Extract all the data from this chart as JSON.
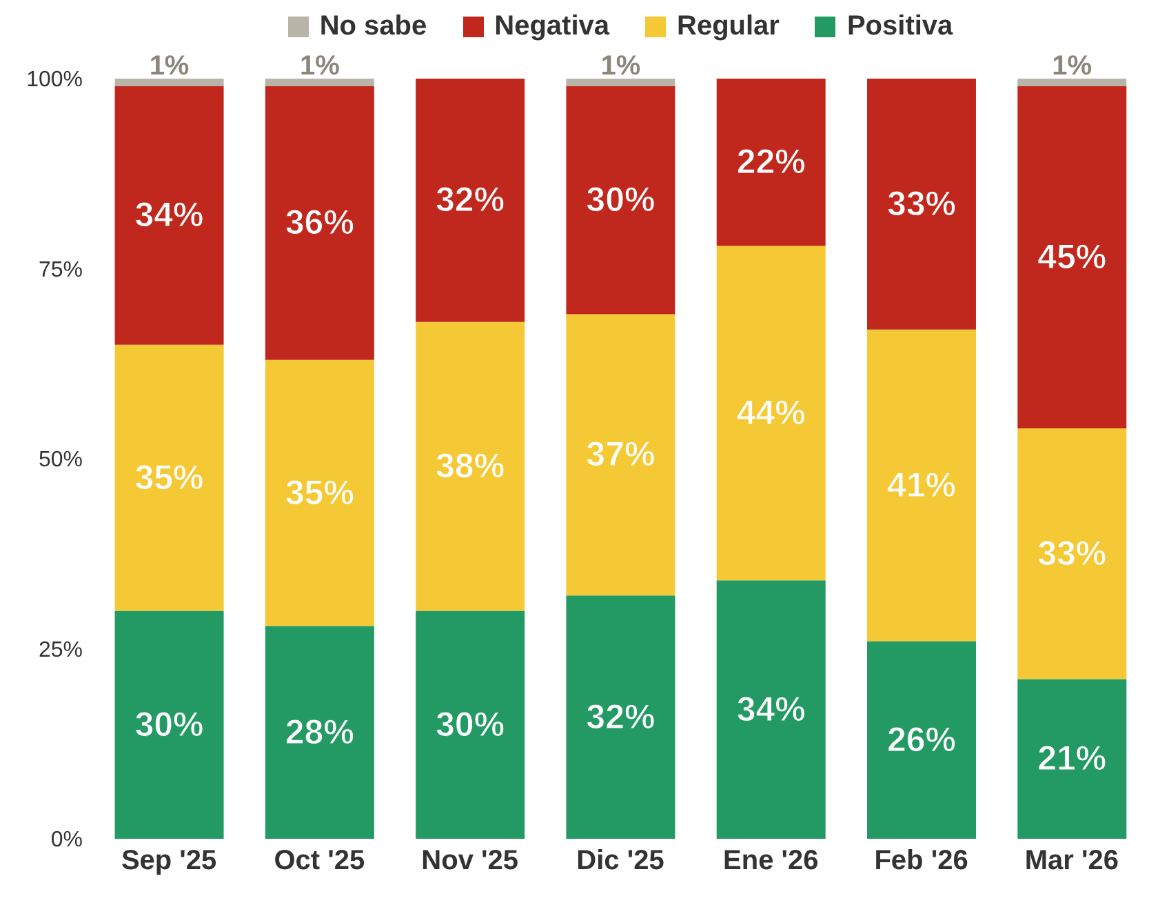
{
  "chart_data": {
    "type": "bar",
    "stacked": true,
    "legend": "top",
    "categories": [
      "Sep '25",
      "Oct '25",
      "Nov '25",
      "Dic '25",
      "Ene '26",
      "Feb '26",
      "Mar '26"
    ],
    "ylim": [
      0,
      100
    ],
    "yticks": [
      {
        "value": 0,
        "label": "0%"
      },
      {
        "value": 25,
        "label": "25%"
      },
      {
        "value": 50,
        "label": "50%"
      },
      {
        "value": 75,
        "label": "75%"
      },
      {
        "value": 100,
        "label": "100%"
      }
    ],
    "series": [
      {
        "name": "Positiva",
        "color": "#239a63",
        "values": [
          30,
          28,
          30,
          32,
          34,
          26,
          21
        ],
        "value_labels": [
          "30%",
          "28%",
          "30%",
          "32%",
          "34%",
          "26%",
          "21%"
        ]
      },
      {
        "name": "Regular",
        "color": "#f5c935",
        "values": [
          35,
          35,
          38,
          37,
          44,
          41,
          33
        ],
        "value_labels": [
          "35%",
          "35%",
          "38%",
          "37%",
          "44%",
          "41%",
          "33%"
        ]
      },
      {
        "name": "Negativa",
        "color": "#c0281e",
        "values": [
          34,
          36,
          32,
          30,
          22,
          33,
          45
        ],
        "value_labels": [
          "34%",
          "36%",
          "32%",
          "30%",
          "22%",
          "33%",
          "45%"
        ]
      },
      {
        "name": "No sabe",
        "color": "#b8b4a8",
        "values": [
          1,
          1,
          null,
          1,
          null,
          null,
          1
        ],
        "value_labels": [
          "1%",
          "1%",
          null,
          "1%",
          null,
          null,
          "1%"
        ]
      }
    ]
  }
}
